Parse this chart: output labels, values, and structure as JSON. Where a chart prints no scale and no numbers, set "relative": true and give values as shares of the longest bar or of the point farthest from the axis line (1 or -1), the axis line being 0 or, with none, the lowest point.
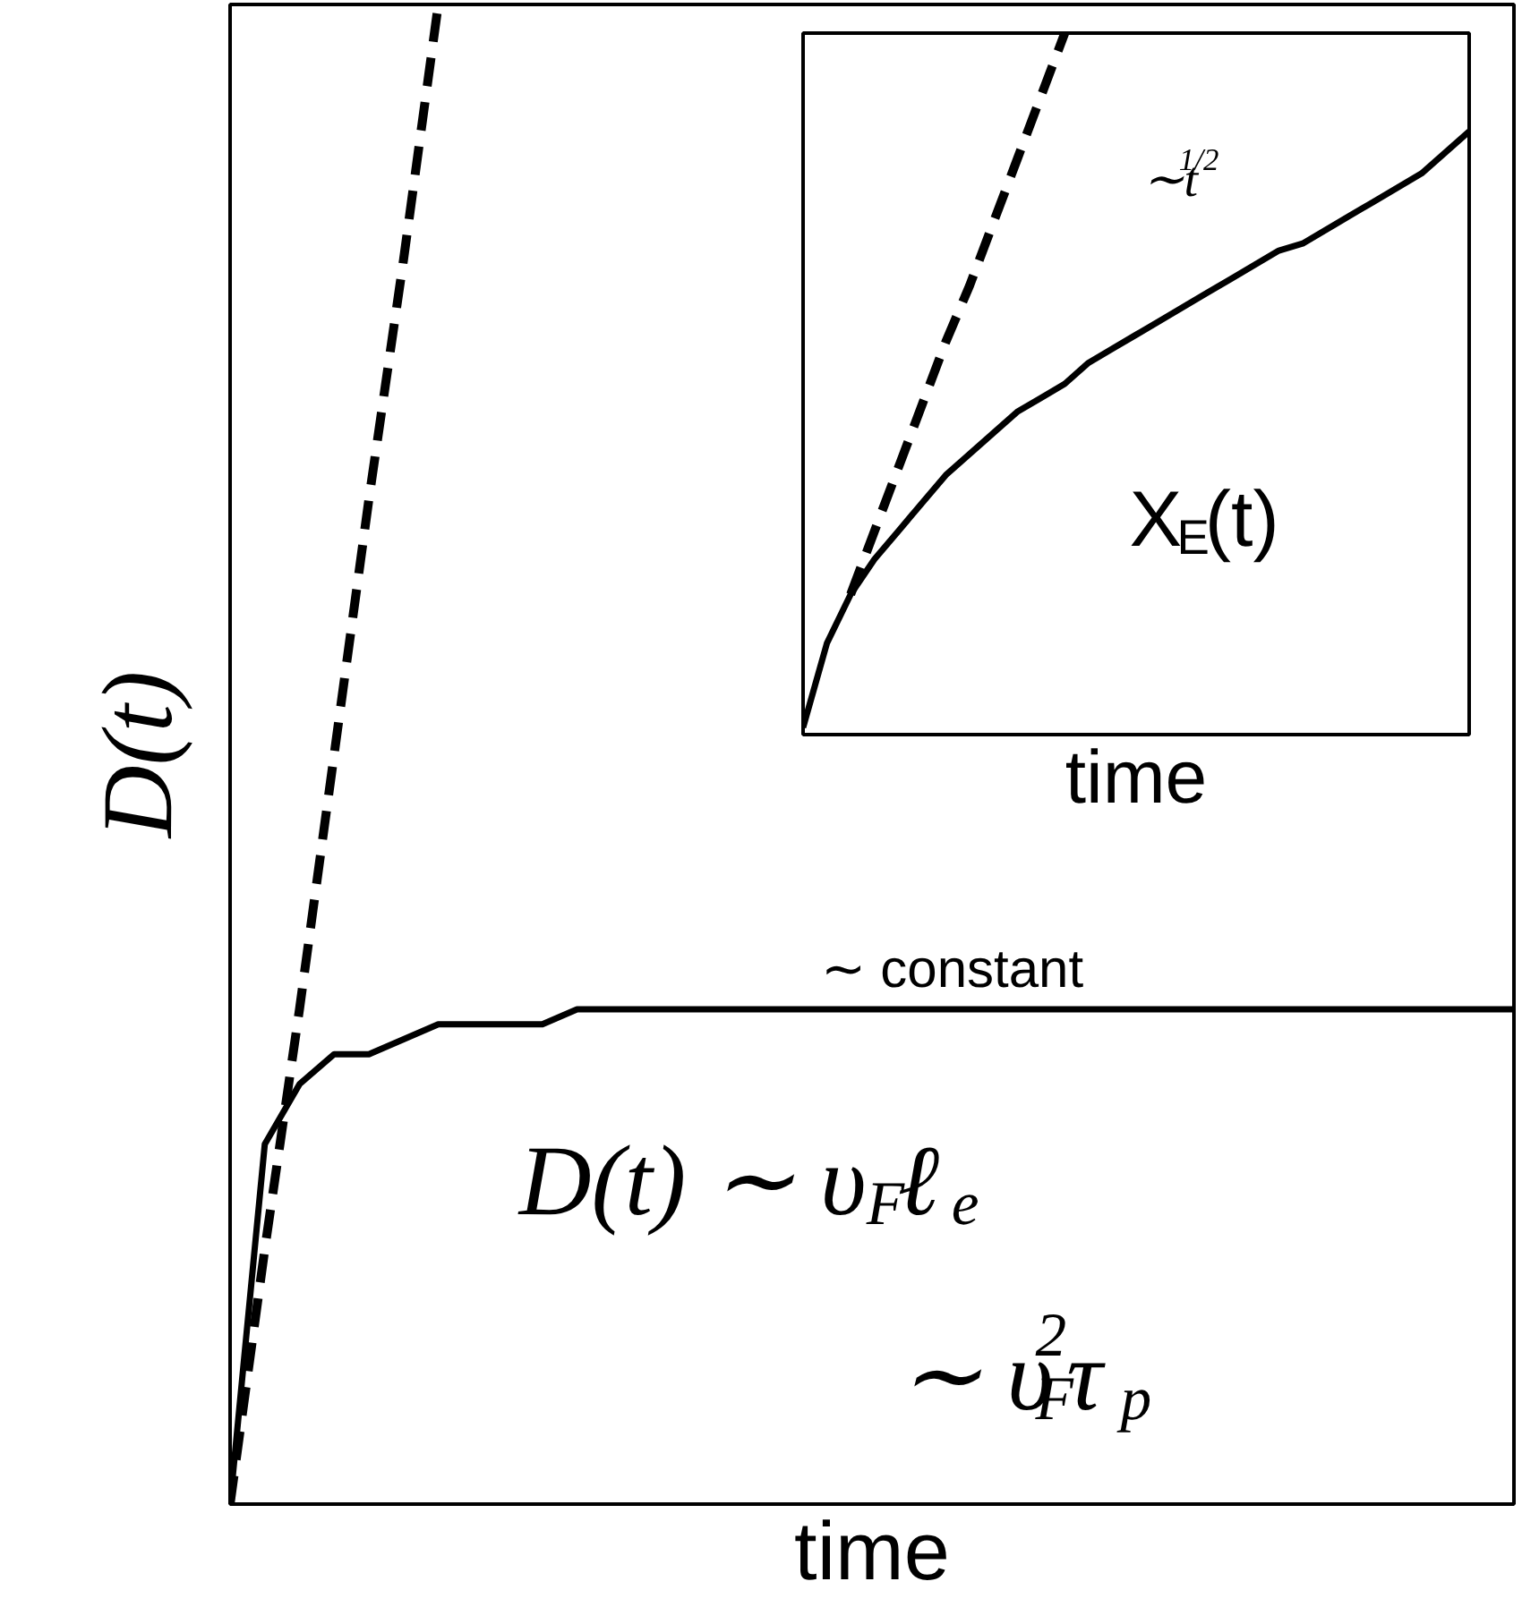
{
  "chart_data": [
    {
      "type": "line",
      "xlabel": "time",
      "ylabel": "D(t)",
      "relative": true,
      "line_style": "solid",
      "categories": [
        null,
        null,
        null,
        null,
        null,
        null,
        null,
        null,
        null,
        null,
        null,
        null,
        null,
        null,
        null,
        null,
        null,
        null,
        null,
        null,
        null,
        null,
        null,
        null,
        null,
        null,
        null,
        null,
        null,
        null,
        null,
        null,
        null,
        null,
        null,
        null,
        null,
        null
      ],
      "series": [
        {
          "color": "#000000",
          "values": [
            0,
            0.24,
            0.28,
            0.3,
            0.3,
            0.31,
            0.32,
            0.32,
            0.32,
            0.32,
            0.33,
            0.33,
            0.33,
            0.33,
            0.33,
            0.33,
            0.33,
            0.33,
            0.33,
            0.33,
            0.33,
            0.33,
            0.33,
            0.33,
            0.33,
            0.33,
            0.33,
            0.33,
            0.33,
            0.33,
            0.33,
            0.33,
            0.33,
            0.33,
            0.33,
            0.33,
            0.33,
            0.33
          ]
        },
        {
          "color": "#000000",
          "line_style": "dashed",
          "values": [
            0,
            0.17,
            0.33,
            0.5,
            0.67,
            0.83,
            1,
            null,
            null,
            null,
            null,
            null,
            null,
            null,
            null,
            null,
            null,
            null,
            null,
            null,
            null,
            null,
            null,
            null,
            null,
            null,
            null,
            null,
            null,
            null,
            null,
            null,
            null,
            null,
            null,
            null,
            null,
            null
          ]
        }
      ],
      "annotations": [
        "∼ constant",
        "D(t) ∼ υ$_{F}$ℓ$_{e}$",
        "∼ υ$^{2}$$_{F}$τ$_{p}$"
      ]
    },
    {
      "type": "line",
      "xlabel": "time",
      "relative": true,
      "line_style": "solid",
      "categories": [
        null,
        null,
        null,
        null,
        null,
        null,
        null,
        null,
        null,
        null,
        null,
        null,
        null,
        null,
        null,
        null,
        null,
        null,
        null,
        null,
        null,
        null,
        null,
        null,
        null,
        null,
        null,
        null,
        null
      ],
      "series": [
        {
          "color": "#000000",
          "values": [
            0.01,
            0.13,
            0.2,
            0.25,
            0.29,
            0.33,
            0.37,
            0.4,
            0.43,
            0.46,
            0.48,
            0.5,
            0.53,
            0.55,
            0.57,
            0.59,
            0.61,
            0.63,
            0.65,
            0.67,
            0.69,
            0.7,
            0.72,
            0.74,
            0.76,
            0.78,
            0.8,
            0.83,
            0.86
          ]
        },
        {
          "color": "#000000",
          "line_style": "dashed",
          "values": [
            null,
            null,
            0.2,
            0.29,
            0.38,
            0.47,
            0.56,
            0.64,
            0.73,
            0.82,
            0.91,
            1,
            null,
            null,
            null,
            null,
            null,
            null,
            null,
            null,
            null,
            null,
            null,
            null,
            null,
            null,
            null,
            null,
            null
          ]
        }
      ],
      "annotations": [
        "∼t$^{1/2}$",
        "X$_{E}$(t)"
      ]
    }
  ]
}
